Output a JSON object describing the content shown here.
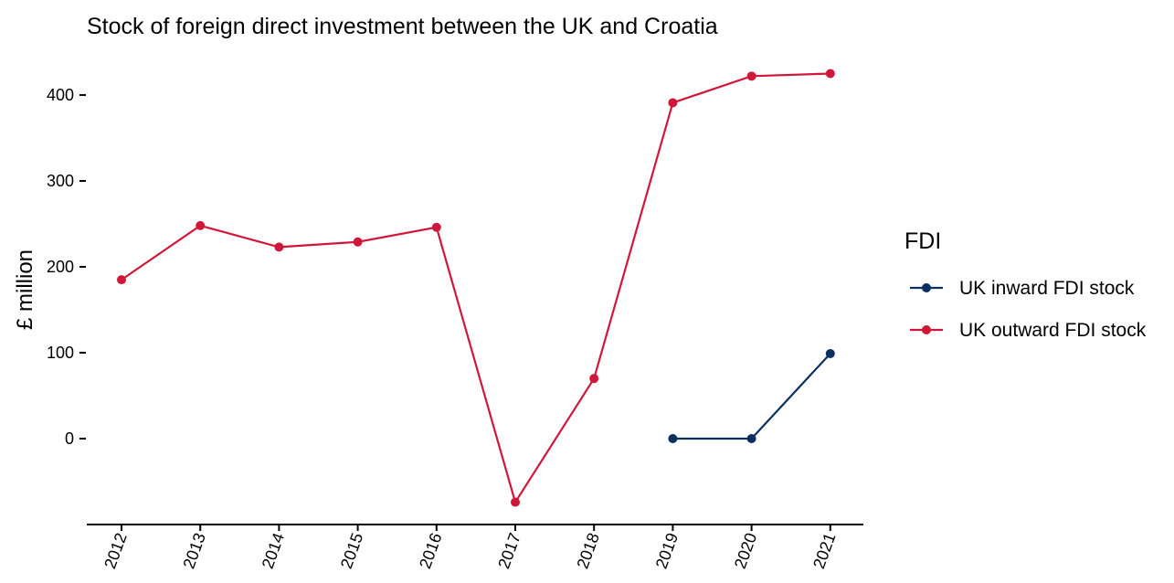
{
  "chart_data": {
    "type": "line",
    "title": "Stock of foreign direct investment between the UK and Croatia",
    "xlabel": "",
    "ylabel": "£ million",
    "categories": [
      "2012",
      "2013",
      "2014",
      "2015",
      "2016",
      "2017",
      "2018",
      "2019",
      "2020",
      "2021"
    ],
    "yticks": [
      0,
      100,
      200,
      300,
      400
    ],
    "ylim": [
      -95,
      440
    ],
    "legend": {
      "title": "FDI",
      "position": "right"
    },
    "grid": false,
    "series": [
      {
        "name": "UK inward FDI stock",
        "color": "#0b2f5e",
        "values": [
          null,
          null,
          null,
          null,
          null,
          null,
          null,
          0,
          0,
          99
        ]
      },
      {
        "name": "UK outward FDI stock",
        "color": "#d0173a",
        "values": [
          185,
          248,
          223,
          229,
          246,
          -74,
          70,
          391,
          422,
          425
        ]
      }
    ]
  }
}
